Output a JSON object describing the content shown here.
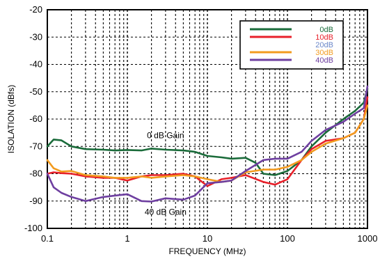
{
  "chart_data": {
    "type": "line",
    "title": "",
    "xlabel": "FREQUENCY (MHz)",
    "ylabel": "ISOLATION (dBfs)",
    "x_scale": "log",
    "xlim": [
      0.1,
      1000
    ],
    "ylim": [
      -100,
      -20
    ],
    "x_ticks": [
      0.1,
      1,
      10,
      100,
      1000
    ],
    "x_tick_labels": [
      "0.1",
      "1",
      "10",
      "100",
      "1000"
    ],
    "y_ticks": [
      -20,
      -30,
      -40,
      -50,
      -60,
      -70,
      -80,
      -90,
      -100
    ],
    "y_tick_labels": [
      "-20",
      "-30",
      "-40",
      "-50",
      "-60",
      "-70",
      "-80",
      "-90",
      "-100"
    ],
    "grid": true,
    "legend_position": "top-right",
    "annotations": [
      {
        "text": "0 dB Gain",
        "x": 3,
        "y": -67
      },
      {
        "text": "40 dB Gain",
        "x": 3,
        "y": -95
      }
    ],
    "series": [
      {
        "name": "0dB",
        "color": "#1a6b3a",
        "points": [
          [
            0.1,
            -70
          ],
          [
            0.12,
            -67.5
          ],
          [
            0.15,
            -67.8
          ],
          [
            0.2,
            -70
          ],
          [
            0.3,
            -71
          ],
          [
            0.5,
            -71.2
          ],
          [
            0.7,
            -71.5
          ],
          [
            1,
            -71.3
          ],
          [
            1.5,
            -71.5
          ],
          [
            2,
            -70.8
          ],
          [
            3,
            -71.2
          ],
          [
            5,
            -71.5
          ],
          [
            7,
            -72
          ],
          [
            10,
            -73.5
          ],
          [
            15,
            -74
          ],
          [
            20,
            -74.5
          ],
          [
            30,
            -74.2
          ],
          [
            40,
            -76
          ],
          [
            50,
            -80
          ],
          [
            70,
            -80.5
          ],
          [
            100,
            -79
          ],
          [
            150,
            -75
          ],
          [
            200,
            -70
          ],
          [
            300,
            -65
          ],
          [
            500,
            -60
          ],
          [
            700,
            -57
          ],
          [
            900,
            -54
          ],
          [
            1000,
            -49
          ]
        ]
      },
      {
        "name": "10dB",
        "color": "#e8202a",
        "points": [
          [
            0.1,
            -80
          ],
          [
            0.12,
            -79.5
          ],
          [
            0.15,
            -79.8
          ],
          [
            0.2,
            -80
          ],
          [
            0.3,
            -81
          ],
          [
            0.5,
            -81.5
          ],
          [
            0.7,
            -81.5
          ],
          [
            1,
            -82.5
          ],
          [
            1.5,
            -81
          ],
          [
            2,
            -80.5
          ],
          [
            3,
            -80.5
          ],
          [
            5,
            -80
          ],
          [
            7,
            -81
          ],
          [
            10,
            -84.5
          ],
          [
            15,
            -82
          ],
          [
            20,
            -81.5
          ],
          [
            30,
            -80.5
          ],
          [
            50,
            -83
          ],
          [
            70,
            -84
          ],
          [
            100,
            -82
          ],
          [
            150,
            -75
          ],
          [
            200,
            -71
          ],
          [
            300,
            -68
          ],
          [
            500,
            -67
          ],
          [
            700,
            -65
          ],
          [
            900,
            -60
          ],
          [
            1000,
            -52
          ]
        ]
      },
      {
        "name": "20dB",
        "color": "#6a86c8",
        "points": []
      },
      {
        "name": "30dB",
        "color": "#f29b1f",
        "points": [
          [
            0.1,
            -75
          ],
          [
            0.12,
            -78
          ],
          [
            0.15,
            -79.2
          ],
          [
            0.2,
            -79
          ],
          [
            0.3,
            -80.5
          ],
          [
            0.5,
            -81
          ],
          [
            0.7,
            -81.5
          ],
          [
            1,
            -81.5
          ],
          [
            1.5,
            -81
          ],
          [
            2,
            -81.5
          ],
          [
            3,
            -81
          ],
          [
            5,
            -80.5
          ],
          [
            7,
            -81
          ],
          [
            10,
            -82
          ],
          [
            15,
            -83
          ],
          [
            20,
            -82.5
          ],
          [
            30,
            -79.5
          ],
          [
            50,
            -78.5
          ],
          [
            70,
            -78.5
          ],
          [
            100,
            -77.5
          ],
          [
            150,
            -75
          ],
          [
            200,
            -72
          ],
          [
            300,
            -69
          ],
          [
            500,
            -67
          ],
          [
            700,
            -65
          ],
          [
            900,
            -60
          ],
          [
            1000,
            -55
          ]
        ]
      },
      {
        "name": "40dB",
        "color": "#6e3fa0",
        "points": [
          [
            0.1,
            -80
          ],
          [
            0.12,
            -85
          ],
          [
            0.15,
            -87
          ],
          [
            0.2,
            -88.5
          ],
          [
            0.3,
            -90
          ],
          [
            0.5,
            -88.5
          ],
          [
            0.7,
            -88
          ],
          [
            1,
            -87.5
          ],
          [
            1.5,
            -90
          ],
          [
            2,
            -90.2
          ],
          [
            3,
            -89
          ],
          [
            5,
            -89.5
          ],
          [
            7,
            -88
          ],
          [
            10,
            -83.5
          ],
          [
            15,
            -83
          ],
          [
            20,
            -82.5
          ],
          [
            30,
            -79
          ],
          [
            50,
            -75
          ],
          [
            70,
            -74.5
          ],
          [
            100,
            -74.5
          ],
          [
            150,
            -72
          ],
          [
            200,
            -68
          ],
          [
            300,
            -64
          ],
          [
            500,
            -61
          ],
          [
            700,
            -58
          ],
          [
            900,
            -56
          ],
          [
            1000,
            -48
          ]
        ]
      }
    ]
  }
}
